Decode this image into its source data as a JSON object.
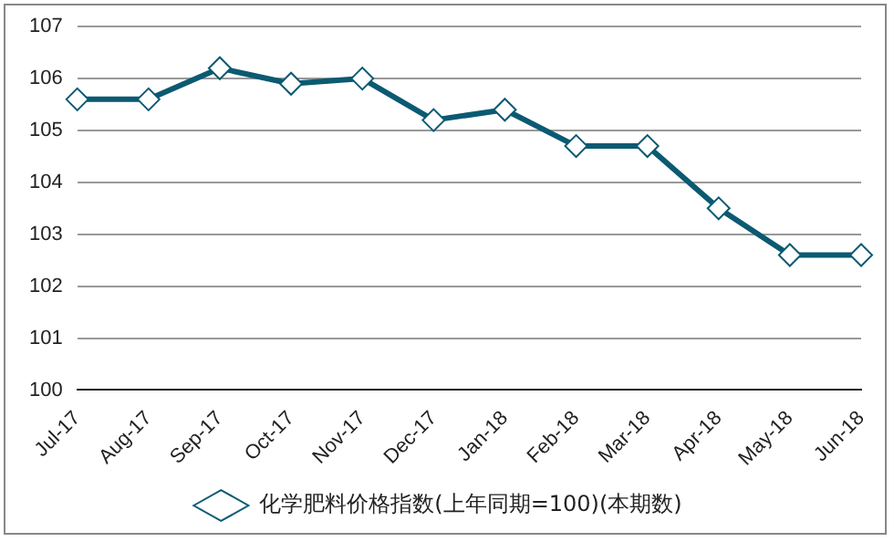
{
  "chart_data": {
    "type": "line",
    "categories": [
      "Jul-17",
      "Aug-17",
      "Sep-17",
      "Oct-17",
      "Nov-17",
      "Dec-17",
      "Jan-18",
      "Feb-18",
      "Mar-18",
      "Apr-18",
      "May-18",
      "Jun-18"
    ],
    "series": [
      {
        "name": "化学肥料价格指数(上年同期=100)(本期数)",
        "color": "#0b5a72",
        "values": [
          105.6,
          105.6,
          106.2,
          105.9,
          106.0,
          105.2,
          105.4,
          104.7,
          104.7,
          103.5,
          102.6,
          102.6
        ]
      }
    ],
    "ylim": [
      100,
      107
    ],
    "yticks": [
      100,
      101,
      102,
      103,
      104,
      105,
      106,
      107
    ],
    "grid": "y",
    "legend": "bottom",
    "marker": "diamond",
    "line_style": "solid"
  }
}
